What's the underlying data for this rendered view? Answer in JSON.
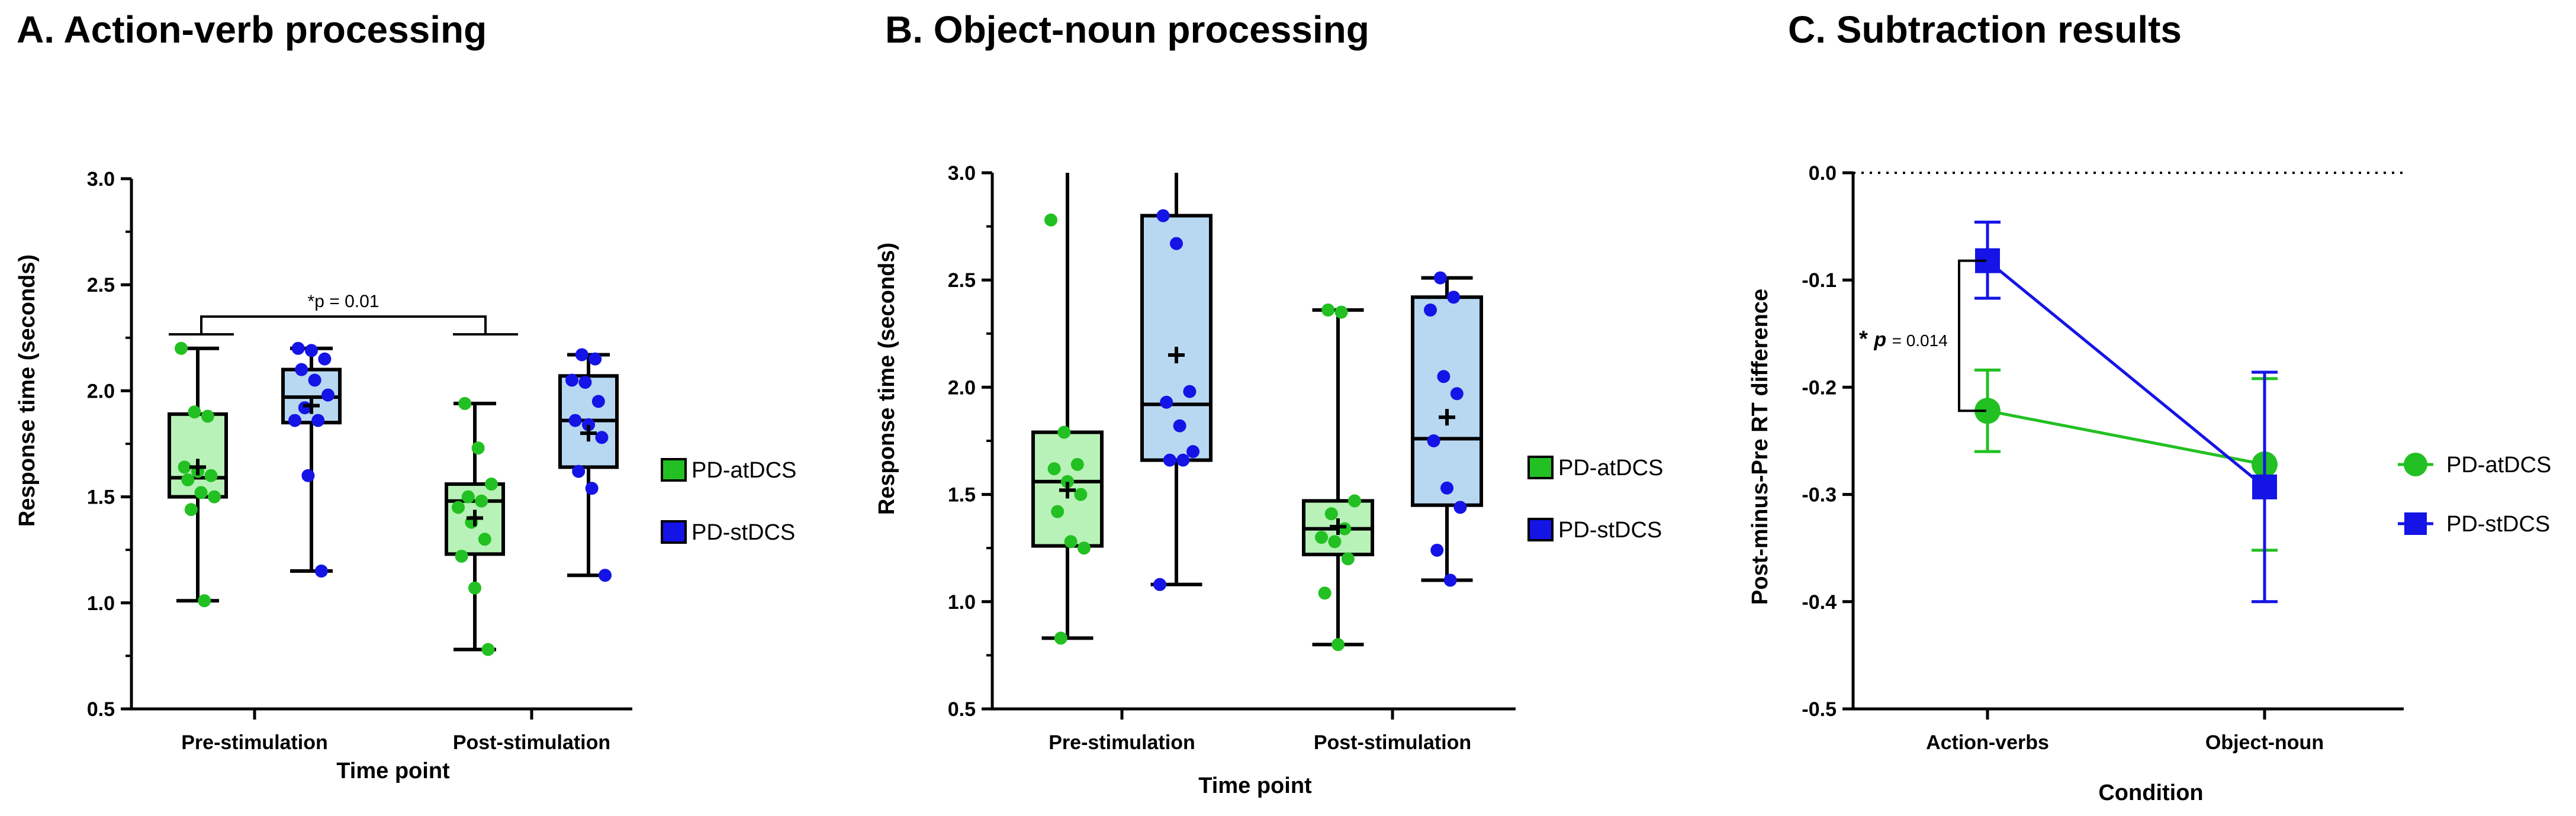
{
  "colors": {
    "green": "#22c022",
    "green_fill": "#b8f2b8",
    "blue": "#1414e6",
    "blue_fill": "#b8d8f2",
    "axis": "#000000"
  },
  "chart_data": [
    {
      "panel": "A",
      "type": "box",
      "title": "A. Action-verb processing",
      "xlabel": "Time point",
      "ylabel": "Response time (seconds)",
      "ylim": [
        0.5,
        3.0
      ],
      "yticks": [
        "0.5",
        "1.0",
        "1.5",
        "2.0",
        "2.5",
        "3.0"
      ],
      "categories": [
        "Pre-stimulation",
        "Post-stimulation"
      ],
      "legend": [
        "PD-atDCS",
        "PD-stDCS"
      ],
      "annotation": "*p = 0.01",
      "boxes": [
        {
          "series": "PD-atDCS",
          "category": "Pre-stimulation",
          "min": 1.01,
          "q1": 1.5,
          "median": 1.59,
          "q3": 1.89,
          "max": 2.2,
          "mean": 1.64,
          "points": [
            2.2,
            1.9,
            1.88,
            1.64,
            1.62,
            1.6,
            1.58,
            1.52,
            1.5,
            1.44,
            1.01
          ]
        },
        {
          "series": "PD-stDCS",
          "category": "Pre-stimulation",
          "min": 1.15,
          "q1": 1.85,
          "median": 1.97,
          "q3": 2.1,
          "max": 2.2,
          "mean": 1.93,
          "points": [
            2.2,
            2.19,
            2.15,
            2.1,
            2.05,
            1.98,
            1.92,
            1.86,
            1.86,
            1.6,
            1.15
          ]
        },
        {
          "series": "PD-atDCS",
          "category": "Post-stimulation",
          "min": 0.78,
          "q1": 1.23,
          "median": 1.48,
          "q3": 1.56,
          "max": 1.94,
          "mean": 1.4,
          "points": [
            1.94,
            1.73,
            1.56,
            1.5,
            1.48,
            1.45,
            1.38,
            1.3,
            1.22,
            1.07,
            0.78
          ]
        },
        {
          "series": "PD-stDCS",
          "category": "Post-stimulation",
          "min": 1.13,
          "q1": 1.64,
          "median": 1.86,
          "q3": 2.07,
          "max": 2.17,
          "mean": 1.8,
          "points": [
            2.17,
            2.15,
            2.05,
            2.04,
            1.95,
            1.86,
            1.84,
            1.78,
            1.62,
            1.54,
            1.13
          ]
        }
      ]
    },
    {
      "panel": "B",
      "type": "box",
      "title": "B. Object-noun processing",
      "xlabel": "Time point",
      "ylabel": "Response time (seconds)",
      "ylim": [
        0.5,
        3.0
      ],
      "yticks": [
        "0.5",
        "1.0",
        "1.5",
        "2.0",
        "2.5",
        "3.0"
      ],
      "categories": [
        "Pre-stimulation",
        "Post-stimulation"
      ],
      "legend": [
        "PD-atDCS",
        "PD-stDCS"
      ],
      "boxes": [
        {
          "series": "PD-atDCS",
          "category": "Pre-stimulation",
          "min": 0.83,
          "q1": 1.26,
          "median": 1.56,
          "q3": 1.79,
          "max": 3.0,
          "mean": 1.52,
          "points": [
            2.78,
            1.79,
            1.64,
            1.62,
            1.56,
            1.5,
            1.42,
            1.28,
            1.25,
            0.83
          ]
        },
        {
          "series": "PD-stDCS",
          "category": "Pre-stimulation",
          "min": 1.08,
          "q1": 1.66,
          "median": 1.92,
          "q3": 2.8,
          "max": 3.0,
          "mean": 2.15,
          "points": [
            2.8,
            2.67,
            1.98,
            1.93,
            1.82,
            1.7,
            1.66,
            1.66,
            1.08
          ]
        },
        {
          "series": "PD-atDCS",
          "category": "Post-stimulation",
          "min": 0.8,
          "q1": 1.22,
          "median": 1.34,
          "q3": 1.47,
          "max": 2.36,
          "mean": 1.35,
          "points": [
            2.36,
            2.35,
            1.47,
            1.41,
            1.34,
            1.3,
            1.28,
            1.2,
            1.04,
            0.8
          ]
        },
        {
          "series": "PD-stDCS",
          "category": "Post-stimulation",
          "min": 1.1,
          "q1": 1.45,
          "median": 1.76,
          "q3": 2.42,
          "max": 2.51,
          "mean": 1.86,
          "points": [
            2.51,
            2.42,
            2.36,
            2.05,
            1.97,
            1.75,
            1.53,
            1.44,
            1.24,
            1.1
          ]
        }
      ]
    },
    {
      "panel": "C",
      "type": "line",
      "title": "C. Subtraction results",
      "xlabel": "Condition",
      "ylabel": "Post-minus-Pre RT difference",
      "ylim": [
        -0.5,
        0.0
      ],
      "yticks": [
        "0.0",
        "-0.1",
        "-0.2",
        "-0.3",
        "-0.4",
        "-0.5"
      ],
      "categories": [
        "Action-verbs",
        "Object-noun"
      ],
      "annotation_star": "*",
      "annotation_p": "p",
      "annotation_value": "= 0.014",
      "series": [
        {
          "name": "PD-atDCS",
          "values": [
            -0.222,
            -0.272
          ],
          "err_low": [
            -0.26,
            -0.352
          ],
          "err_high": [
            -0.184,
            -0.192
          ]
        },
        {
          "name": "PD-stDCS",
          "values": [
            -0.082,
            -0.293
          ],
          "err_low": [
            -0.117,
            -0.4
          ],
          "err_high": [
            -0.046,
            -0.186
          ]
        }
      ]
    }
  ]
}
